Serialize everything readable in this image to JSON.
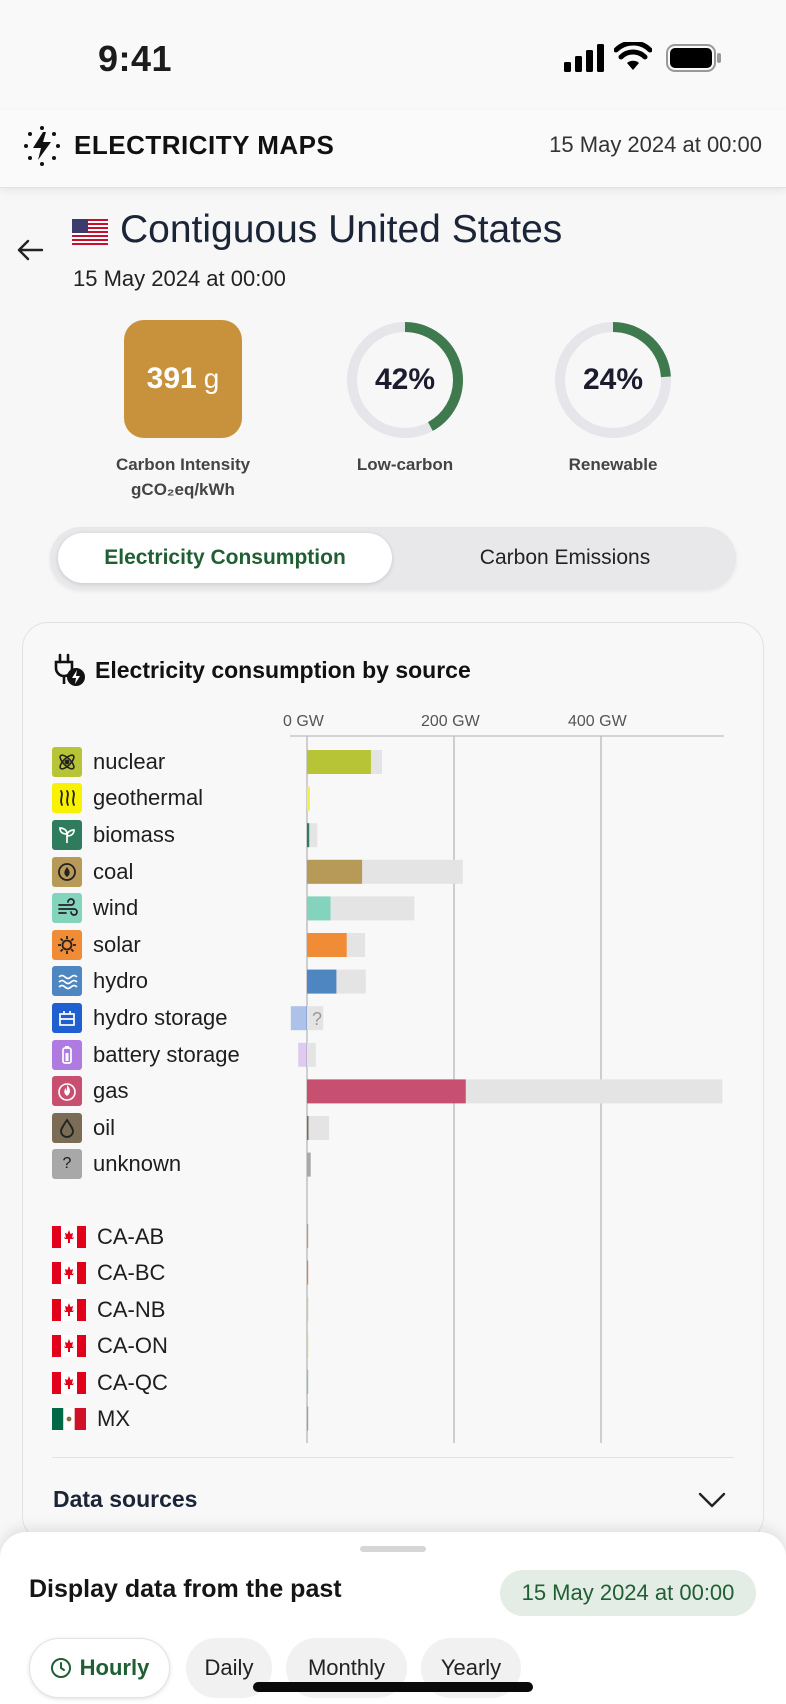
{
  "status_bar": {
    "time": "9:41"
  },
  "header": {
    "brand": "ELECTRICITY MAPS",
    "datetime": "15 May 2024 at 00:00"
  },
  "zone": {
    "name": "Contiguous United States",
    "datetime": "15 May 2024 at 00:00"
  },
  "metrics": {
    "carbon_intensity": {
      "value": "391",
      "unit": "g",
      "label": "Carbon Intensity",
      "sub_label": "gCO₂eq/kWh",
      "color": "#c8923c"
    },
    "low_carbon": {
      "value": "42%",
      "fraction": 0.42,
      "label": "Low-carbon"
    },
    "renewable": {
      "value": "24%",
      "fraction": 0.24,
      "label": "Renewable"
    },
    "ring_color": "#3e7a4e",
    "ring_track_color": "#e6e6ea"
  },
  "tabs": {
    "active": "Electricity Consumption",
    "inactive": "Carbon Emissions"
  },
  "card": {
    "title": "Electricity consumption by source"
  },
  "chart_data": {
    "type": "bar",
    "title": "Electricity consumption by source",
    "x_ticks": [
      "0 GW",
      "200 GW",
      "400 GW"
    ],
    "xlim": [
      0,
      565
    ],
    "unit": "GW",
    "categories": [
      "nuclear",
      "geothermal",
      "biomass",
      "coal",
      "wind",
      "solar",
      "hydro",
      "hydro storage",
      "battery storage",
      "gas",
      "oil",
      "unknown"
    ],
    "series": [
      {
        "values": [
          87,
          4,
          3,
          75,
          32,
          54,
          40,
          -22,
          -12,
          216,
          0.5,
          5
        ]
      },
      {
        "values": [
          102,
          4,
          14,
          212,
          146,
          79,
          80,
          22,
          12,
          565,
          30,
          5
        ]
      }
    ],
    "colors": [
      "#b7c436",
      "#f4f04a",
      "#2e7b5e",
      "#b89a58",
      "#84d4bd",
      "#f08b36",
      "#4e86c2",
      "#1f5fcf",
      "#b07be0",
      "#c75070",
      "#7a6c55",
      "#a8a8a8"
    ],
    "unknown_marker": "?",
    "exchanges": {
      "categories": [
        "CA-AB",
        "CA-BC",
        "CA-NB",
        "CA-ON",
        "CA-QC",
        "MX"
      ],
      "values": [
        0.3,
        0.8,
        0.3,
        0.5,
        1,
        0.4
      ]
    }
  },
  "sources": [
    {
      "label": "nuclear",
      "icon": "nuclear-icon",
      "color": "#b7c436"
    },
    {
      "label": "geothermal",
      "icon": "geothermal-icon",
      "color": "#f8f200"
    },
    {
      "label": "biomass",
      "icon": "biomass-icon",
      "color": "#2e7b5e"
    },
    {
      "label": "coal",
      "icon": "coal-icon",
      "color": "#b89a58"
    },
    {
      "label": "wind",
      "icon": "wind-icon",
      "color": "#84d4bd"
    },
    {
      "label": "solar",
      "icon": "solar-icon",
      "color": "#f08b36"
    },
    {
      "label": "hydro",
      "icon": "hydro-icon",
      "color": "#4e86c2"
    },
    {
      "label": "hydro storage",
      "icon": "hydro-storage-icon",
      "color": "#1f5fcf"
    },
    {
      "label": "battery storage",
      "icon": "battery-storage-icon",
      "color": "#b07be0"
    },
    {
      "label": "gas",
      "icon": "gas-icon",
      "color": "#c75070"
    },
    {
      "label": "oil",
      "icon": "oil-icon",
      "color": "#7a6c55"
    },
    {
      "label": "unknown",
      "icon": "unknown-icon",
      "color": "#a8a8a8",
      "glyph": "?"
    }
  ],
  "exchanges": [
    {
      "label": "CA-AB",
      "flag": "canada-flag-icon"
    },
    {
      "label": "CA-BC",
      "flag": "canada-flag-icon"
    },
    {
      "label": "CA-NB",
      "flag": "canada-flag-icon"
    },
    {
      "label": "CA-ON",
      "flag": "canada-flag-icon"
    },
    {
      "label": "CA-QC",
      "flag": "canada-flag-icon"
    },
    {
      "label": "MX",
      "flag": "mexico-flag-icon"
    }
  ],
  "data_sources": {
    "label": "Data sources"
  },
  "bottom_sheet": {
    "title": "Display data from the past",
    "selected_date": "15 May 2024 at 00:00",
    "periods": [
      "Hourly",
      "Daily",
      "Monthly",
      "Yearly"
    ]
  }
}
